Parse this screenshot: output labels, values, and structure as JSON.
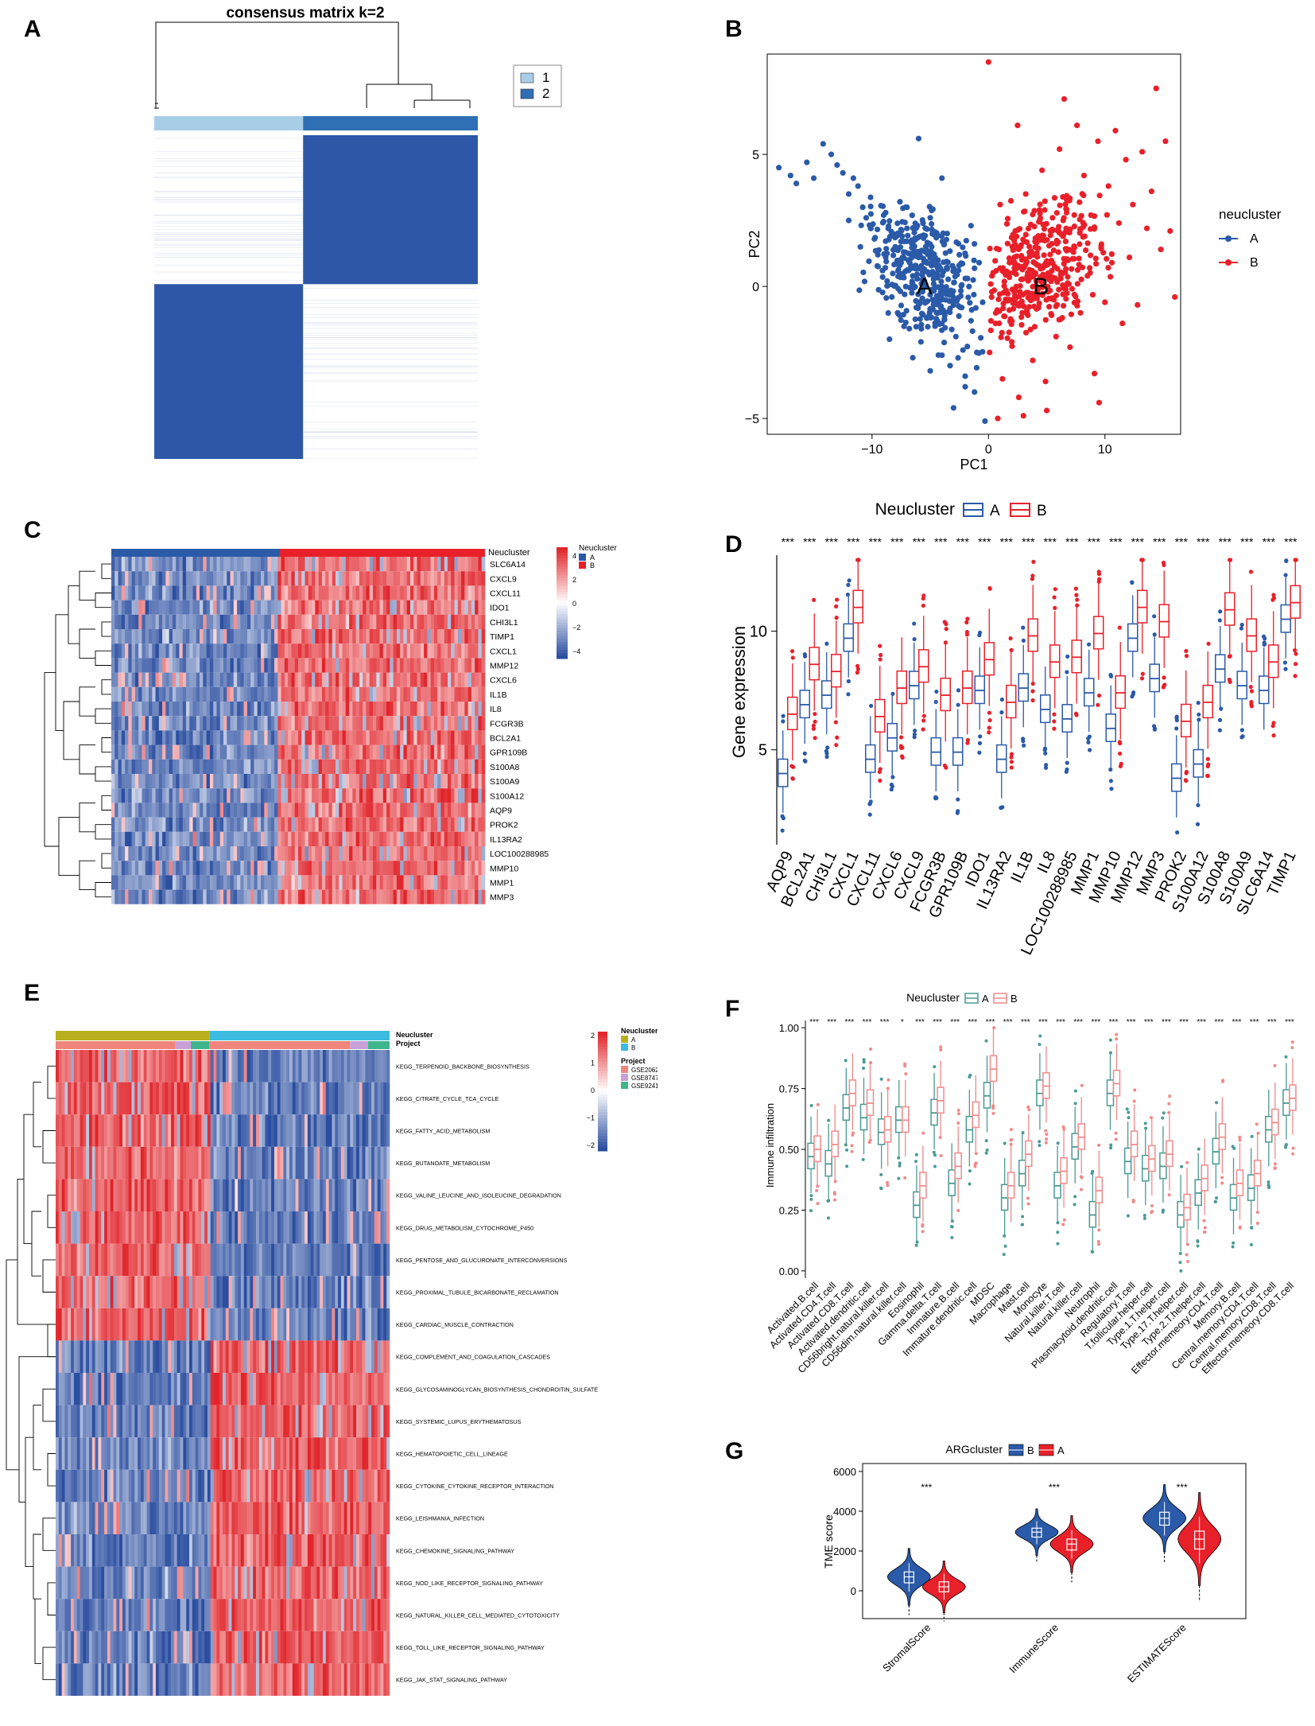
{
  "panels": {
    "A": "A",
    "B": "B",
    "C": "C",
    "D": "D",
    "E": "E",
    "F": "F",
    "G": "G"
  },
  "colors": {
    "blue": "#2a5aa8",
    "red": "#e8202a",
    "heat_blue": "#2b4ea0",
    "heat_red": "#e0252b",
    "pastel_teal": "#4a9a94",
    "pastel_pink": "#f08a8a",
    "light_blue": "#a8cde6",
    "mid_blue": "#2f6fb5",
    "olive": "#b8b01e",
    "cyan": "#3bbbe0",
    "pink": "#e8a0c8",
    "salmon": "#f0857d",
    "green": "#3fb58c"
  },
  "chart_data": [
    {
      "panel": "A",
      "type": "heatmap",
      "title": "consensus matrix k=2",
      "legend": [
        "1",
        "2"
      ],
      "blocks": [
        {
          "cluster": "1",
          "size": 0.46
        },
        {
          "cluster": "2",
          "size": 0.54
        }
      ]
    },
    {
      "panel": "B",
      "type": "scatter",
      "xlabel": "PC1",
      "ylabel": "PC2",
      "xlim": [
        -19,
        16.5
      ],
      "ylim": [
        -5.6,
        8.8
      ],
      "xticks": [
        -10,
        0,
        10
      ],
      "yticks": [
        -5,
        0,
        5
      ],
      "legend_title": "neucluster",
      "series": [
        {
          "name": "A",
          "label": "A",
          "center": [
            -5.5,
            0
          ],
          "points": [
            [
              -18,
              4.5
            ],
            [
              -17,
              4.2
            ],
            [
              -16.5,
              3.9
            ],
            [
              -15.6,
              4.7
            ],
            [
              -15,
              4.1
            ],
            [
              -14.2,
              5.4
            ],
            [
              -13.5,
              5
            ],
            [
              -13,
              4.6
            ],
            [
              -12.5,
              4.3
            ],
            [
              -12,
              3.5
            ],
            [
              -11.6,
              4.1
            ],
            [
              -11.2,
              3.8
            ],
            [
              -10.8,
              3
            ],
            [
              -10.5,
              2.6
            ],
            [
              -10.1,
              2.2
            ],
            [
              -9.8,
              1.8
            ],
            [
              -9.5,
              1.2
            ],
            [
              -9.1,
              0.6
            ],
            [
              -8.7,
              0.2
            ],
            [
              -8.3,
              -0.4
            ],
            [
              -8,
              1.5
            ],
            [
              -7.8,
              -1
            ],
            [
              -7.5,
              0.9
            ],
            [
              -7.2,
              -0.3
            ],
            [
              -7,
              2.2
            ],
            [
              -6.8,
              -1.6
            ],
            [
              -6.5,
              0.4
            ],
            [
              -6.2,
              -0.8
            ],
            [
              -6,
              1.1
            ],
            [
              -5.8,
              -2.1
            ],
            [
              -5.5,
              0.2
            ],
            [
              -5.3,
              -1.2
            ],
            [
              -5,
              2.6
            ],
            [
              -4.8,
              -0.5
            ],
            [
              -4.5,
              0.8
            ],
            [
              -4.3,
              -2.6
            ],
            [
              -4,
              -1.4
            ],
            [
              -3.8,
              1.6
            ],
            [
              -3.5,
              -0.2
            ],
            [
              -3.3,
              -3
            ],
            [
              -3,
              0.6
            ],
            [
              -2.8,
              -1.9
            ],
            [
              -2.5,
              1.2
            ],
            [
              -2.3,
              -0.8
            ],
            [
              -2,
              -3.4
            ],
            [
              -1.8,
              0.3
            ],
            [
              -1.5,
              -1.3
            ],
            [
              -1.2,
              -4
            ],
            [
              -1,
              -2.5
            ],
            [
              -0.8,
              0.9
            ],
            [
              -0.5,
              -0.6
            ],
            [
              -0.3,
              -5.1
            ],
            [
              -6,
              5.6
            ],
            [
              -4,
              4.1
            ],
            [
              -12,
              2.5
            ],
            [
              -9,
              2.7
            ],
            [
              -7,
              3
            ],
            [
              -11,
              1.5
            ],
            [
              -8.5,
              -2
            ],
            [
              -3,
              -4.6
            ],
            [
              -2,
              -3.8
            ],
            [
              -5,
              -3.2
            ],
            [
              -1.5,
              2.3
            ],
            [
              -6.5,
              -2.7
            ]
          ]
        },
        {
          "name": "B",
          "label": "B",
          "center": [
            4.5,
            0
          ],
          "points": [
            [
              0.1,
              -2.5
            ],
            [
              0.3,
              0.4
            ],
            [
              0.6,
              -1.4
            ],
            [
              0.9,
              1.4
            ],
            [
              1.2,
              -3.5
            ],
            [
              1.5,
              -0.5
            ],
            [
              1.8,
              0.9
            ],
            [
              2,
              -2.1
            ],
            [
              2.3,
              2.1
            ],
            [
              2.6,
              -4.2
            ],
            [
              2.9,
              -1
            ],
            [
              3.2,
              3.5
            ],
            [
              3.5,
              0.3
            ],
            [
              3.8,
              -2.8
            ],
            [
              4,
              1.7
            ],
            [
              4.3,
              -0.8
            ],
            [
              4.6,
              4.4
            ],
            [
              4.9,
              -3.6
            ],
            [
              5.2,
              0.9
            ],
            [
              5.5,
              2.6
            ],
            [
              5.8,
              -1.9
            ],
            [
              6.1,
              5.2
            ],
            [
              6.4,
              -0.3
            ],
            [
              6.7,
              3.3
            ],
            [
              7,
              -2.3
            ],
            [
              7.3,
              1.3
            ],
            [
              7.6,
              6.1
            ],
            [
              7.9,
              -1
            ],
            [
              8.2,
              4.2
            ],
            [
              8.5,
              0.4
            ],
            [
              8.8,
              2.7
            ],
            [
              9.1,
              -3.3
            ],
            [
              9.4,
              5.5
            ],
            [
              9.7,
              1.6
            ],
            [
              10,
              -0.6
            ],
            [
              10.3,
              3.8
            ],
            [
              10.6,
              0.9
            ],
            [
              10.9,
              5.9
            ],
            [
              11.2,
              2.4
            ],
            [
              11.5,
              -1.4
            ],
            [
              11.8,
              4.8
            ],
            [
              12.1,
              1.1
            ],
            [
              12.4,
              3.1
            ],
            [
              12.8,
              -0.7
            ],
            [
              13.2,
              5.1
            ],
            [
              13.6,
              2.2
            ],
            [
              14,
              3.6
            ],
            [
              14.4,
              7.5
            ],
            [
              14.8,
              1.4
            ],
            [
              15.2,
              5.5
            ],
            [
              15.6,
              2.1
            ],
            [
              16,
              -0.4
            ],
            [
              0,
              8.5
            ],
            [
              9.5,
              -4.4
            ],
            [
              5,
              -4.7
            ],
            [
              3,
              -4.9
            ],
            [
              1,
              3.1
            ],
            [
              2.5,
              6.1
            ],
            [
              0.8,
              -5
            ],
            [
              6.5,
              7.1
            ]
          ]
        }
      ]
    },
    {
      "panel": "C",
      "type": "heatmap",
      "annotation_label": "Neucluster",
      "legend_title": "Neucluster",
      "legend_items": [
        "A",
        "B"
      ],
      "scale_ticks": [
        "4",
        "2",
        "0",
        "−2",
        "−4"
      ],
      "groups": [
        {
          "name": "A",
          "fraction": 0.45
        },
        {
          "name": "B",
          "fraction": 0.55
        }
      ],
      "rows": [
        "SLC6A14",
        "CXCL9",
        "CXCL11",
        "IDO1",
        "CHI3L1",
        "TIMP1",
        "CXCL1",
        "MMP12",
        "CXCL6",
        "IL1B",
        "IL8",
        "FCGR3B",
        "BCL2A1",
        "GPR109B",
        "S100A8",
        "S100A9",
        "S100A12",
        "AQP9",
        "PROK2",
        "IL13RA2",
        "LOC100288985",
        "MMP10",
        "MMP1",
        "MMP3"
      ]
    },
    {
      "panel": "D",
      "type": "box",
      "legend_title": "Neucluster",
      "legend": [
        "A",
        "B"
      ],
      "ylabel": "Gene expression",
      "ylim": [
        1,
        13.2
      ],
      "yticks": [
        5,
        10
      ],
      "significance": "***",
      "categories": [
        "AQP9",
        "BCL2A1",
        "CHI3L1",
        "CXCL1",
        "CXCL11",
        "CXCL6",
        "CXCL9",
        "FCGR3B",
        "GPR109B",
        "IDO1",
        "IL13RA2",
        "IL1B",
        "IL8",
        "LOC100288985",
        "MMP1",
        "MMP10",
        "MMP12",
        "MMP3",
        "PROK2",
        "S100A12",
        "S100A8",
        "S100A9",
        "SLC6A14",
        "TIMP1"
      ],
      "series": [
        {
          "name": "A",
          "median": [
            4.0,
            6.9,
            7.3,
            9.7,
            4.6,
            5.5,
            7.7,
            4.9,
            4.9,
            7.5,
            4.6,
            7.6,
            6.7,
            6.3,
            7.4,
            5.9,
            9.7,
            8.0,
            3.8,
            4.4,
            8.4,
            7.7,
            7.5,
            10.5
          ]
        },
        {
          "name": "B",
          "median": [
            6.5,
            8.6,
            8.3,
            11.0,
            6.4,
            7.6,
            8.5,
            7.3,
            7.6,
            8.8,
            7.0,
            9.8,
            8.7,
            8.9,
            9.9,
            7.4,
            11.0,
            10.4,
            6.2,
            7.0,
            10.9,
            9.8,
            8.7,
            11.2
          ]
        }
      ]
    },
    {
      "panel": "E",
      "type": "heatmap",
      "annotation_labels": [
        "Neucluster",
        "Project"
      ],
      "legend_titles": [
        "Neucluster",
        "Project"
      ],
      "neucluster_items": [
        "A",
        "B"
      ],
      "project_items": [
        "GSE206285",
        "GSE87473",
        "GSE92415"
      ],
      "scale_ticks": [
        "2",
        "1",
        "0",
        "−1",
        "−2"
      ],
      "groups": [
        {
          "name": "A",
          "fraction": 0.46
        },
        {
          "name": "B",
          "fraction": 0.54
        }
      ],
      "rows": [
        "KEGG_TERPENOID_BACKBONE_BIOSYNTHESIS",
        "KEGG_CITRATE_CYCLE_TCA_CYCLE",
        "KEGG_FATTY_ACID_METABOLISM",
        "KEGG_BUTANOATE_METABOLISM",
        "KEGG_VALINE_LEUCINE_AND_ISOLEUCINE_DEGRADATION",
        "KEGG_DRUG_METABOLISM_CYTOCHROME_P450",
        "KEGG_PENTOSE_AND_GLUCURONATE_INTERCONVERSIONS",
        "KEGG_PROXIMAL_TUBULE_BICARBONATE_RECLAMATION",
        "KEGG_CARDIAC_MUSCLE_CONTRACTION",
        "KEGG_COMPLEMENT_AND_COAGULATION_CASCADES",
        "KEGG_GLYCOSAMINOGLYCAN_BIOSYNTHESIS_CHONDROITIN_SULFATE",
        "KEGG_SYSTEMIC_LUPUS_ERYTHEMATOSUS",
        "KEGG_HEMATOPOIETIC_CELL_LINEAGE",
        "KEGG_CYTOKINE_CYTOKINE_RECEPTOR_INTERACTION",
        "KEGG_LEISHMANIA_INFECTION",
        "KEGG_CHEMOKINE_SIGNALING_PATHWAY",
        "KEGG_NOD_LIKE_RECEPTOR_SIGNALING_PATHWAY",
        "KEGG_NATURAL_KILLER_CELL_MEDIATED_CYTOTOXICITY",
        "KEGG_TOLL_LIKE_RECEPTOR_SIGNALING_PATHWAY",
        "KEGG_JAK_STAT_SIGNALING_PATHWAY"
      ]
    },
    {
      "panel": "F",
      "type": "box",
      "legend_title": "Neucluster",
      "legend": [
        "A",
        "B"
      ],
      "ylabel": "Immune infiltration",
      "ylim": [
        -0.03,
        1.03
      ],
      "yticks": [
        "0.00",
        "0.25",
        "0.50",
        "0.75",
        "1.00"
      ],
      "categories": [
        "Activated.B.cell",
        "Activated.CD4.T.cell",
        "Activated.CD8.T.cell",
        "Activated.dendritic.cell",
        "CD56bright.natural.killer.cell",
        "CD56dim.natural.killer.cell",
        "Eosinophil",
        "Gamma.delta.T.cell",
        "Immature.B.cell",
        "Immature.dendritic.cell",
        "MDSC",
        "Macrophage",
        "Mast.cell",
        "Monocyte",
        "Natural.killer.T.cell",
        "Natural.killer.cell",
        "Neutrophil",
        "Plasmacytoid.dendritic.cell",
        "Regulatory.T.cell",
        "T.follicular.helper.cell",
        "Type.1.T.helper.cell",
        "Type.17.T.helper.cell",
        "Type.2.T.helper.cell",
        "Effector.memeory.CD4.T.cell",
        "Memory.B.cell",
        "Central.memory.CD4.T.cell",
        "Central.memory.CD8.T.cell",
        "Effector.memeory.CD8.T.cell"
      ],
      "significance": [
        "***",
        "***",
        "***",
        "***",
        "***",
        "*",
        "***",
        "***",
        "***",
        "***",
        "***",
        "***",
        "***",
        "***",
        "***",
        "***",
        "***",
        "***",
        "***",
        "***",
        "***",
        "***",
        "***",
        "***",
        "***",
        "***",
        "***",
        "***"
      ],
      "series": [
        {
          "name": "A",
          "median": [
            0.47,
            0.44,
            0.67,
            0.63,
            0.57,
            0.62,
            0.27,
            0.65,
            0.36,
            0.58,
            0.72,
            0.3,
            0.4,
            0.73,
            0.35,
            0.51,
            0.23,
            0.73,
            0.45,
            0.42,
            0.43,
            0.23,
            0.32,
            0.49,
            0.3,
            0.34,
            0.58,
            0.69
          ]
        },
        {
          "name": "B",
          "median": [
            0.5,
            0.52,
            0.73,
            0.69,
            0.58,
            0.62,
            0.35,
            0.7,
            0.43,
            0.64,
            0.83,
            0.35,
            0.48,
            0.76,
            0.41,
            0.55,
            0.33,
            0.77,
            0.52,
            0.46,
            0.48,
            0.26,
            0.38,
            0.55,
            0.36,
            0.4,
            0.61,
            0.71
          ]
        }
      ]
    },
    {
      "panel": "G",
      "type": "violin",
      "legend_title": "ARGcluster",
      "legend": [
        "B",
        "A"
      ],
      "ylabel": "TME score",
      "ylim": [
        -1400,
        6400
      ],
      "yticks": [
        0,
        2000,
        4000,
        6000
      ],
      "categories": [
        "StromalScore",
        "ImmuneScore",
        "ESTIMATEScore"
      ],
      "significance": [
        "***",
        "***",
        "***"
      ],
      "series": [
        {
          "name": "B",
          "median": [
            700,
            2950,
            3650
          ],
          "q1": [
            400,
            2700,
            3300
          ],
          "q3": [
            950,
            3150,
            3950
          ]
        },
        {
          "name": "A",
          "median": [
            200,
            2350,
            2600
          ],
          "q1": [
            -50,
            2050,
            2100
          ],
          "q3": [
            450,
            2600,
            3000
          ]
        }
      ]
    }
  ]
}
